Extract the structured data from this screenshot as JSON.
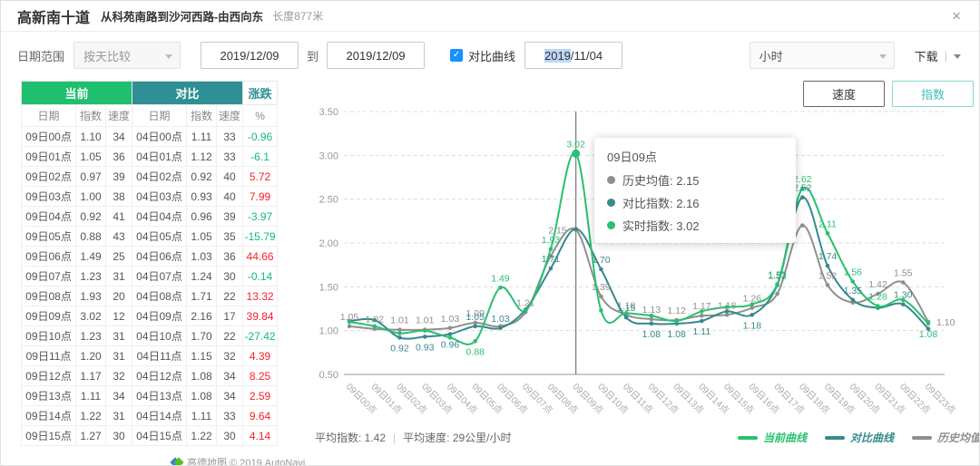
{
  "header": {
    "title": "高新南十道",
    "subtitle": "从科苑南路到沙河西路-由西向东",
    "length": "长度877米",
    "close_icon": "×"
  },
  "toolbar": {
    "date_range_label": "日期范围",
    "compare_mode": "按天比较",
    "start_date": "2019/12/09",
    "to_label": "到",
    "end_date": "2019/12/09",
    "checkmark": "✓",
    "compare_checkbox_label": "对比曲线",
    "compare_date_selected": "2019",
    "compare_date_rest": "/11/04",
    "granularity": "小时",
    "download_label": "下载"
  },
  "mode_buttons": {
    "speed": "速度",
    "index": "指数"
  },
  "table": {
    "group_headers": {
      "current": "当前",
      "compare": "对比",
      "change": "涨跌"
    },
    "columns": [
      "日期",
      "指数",
      "速度",
      "日期",
      "指数",
      "速度",
      "%"
    ],
    "rows": [
      [
        "09日00点",
        "1.10",
        "34",
        "04日00点",
        "1.11",
        "33",
        "-0.96"
      ],
      [
        "09日01点",
        "1.05",
        "36",
        "04日01点",
        "1.12",
        "33",
        "-6.1"
      ],
      [
        "09日02点",
        "0.97",
        "39",
        "04日02点",
        "0.92",
        "40",
        "5.72"
      ],
      [
        "09日03点",
        "1.00",
        "38",
        "04日03点",
        "0.93",
        "40",
        "7.99"
      ],
      [
        "09日04点",
        "0.92",
        "41",
        "04日04点",
        "0.96",
        "39",
        "-3.97"
      ],
      [
        "09日05点",
        "0.88",
        "43",
        "04日05点",
        "1.05",
        "35",
        "-15.79"
      ],
      [
        "09日06点",
        "1.49",
        "25",
        "04日06点",
        "1.03",
        "36",
        "44.66"
      ],
      [
        "09日07点",
        "1.23",
        "31",
        "04日07点",
        "1.24",
        "30",
        "-0.14"
      ],
      [
        "09日08点",
        "1.93",
        "20",
        "04日08点",
        "1.71",
        "22",
        "13.32"
      ],
      [
        "09日09点",
        "3.02",
        "12",
        "04日09点",
        "2.16",
        "17",
        "39.84"
      ],
      [
        "09日10点",
        "1.23",
        "31",
        "04日10点",
        "1.70",
        "22",
        "-27.42"
      ],
      [
        "09日11点",
        "1.20",
        "31",
        "04日11点",
        "1.15",
        "32",
        "4.39"
      ],
      [
        "09日12点",
        "1.17",
        "32",
        "04日12点",
        "1.08",
        "34",
        "8.25"
      ],
      [
        "09日13点",
        "1.11",
        "34",
        "04日13点",
        "1.08",
        "34",
        "2.59"
      ],
      [
        "09日14点",
        "1.22",
        "31",
        "04日14点",
        "1.11",
        "33",
        "9.64"
      ],
      [
        "09日15点",
        "1.27",
        "30",
        "04日15点",
        "1.22",
        "30",
        "4.14"
      ]
    ],
    "colors": {
      "positive_pct": "#f5222d",
      "negative_pct": "#10b981",
      "current_header_bg": "#1fbf6e",
      "compare_header_bg": "#2e9094"
    }
  },
  "chart_data": {
    "type": "line",
    "title": "",
    "xlabel": "",
    "ylabel": "",
    "ylim": [
      0.5,
      3.5
    ],
    "ystep": 0.5,
    "grid": "dashed",
    "hover_index": 9,
    "categories": [
      "09日00点",
      "09日01点",
      "09日02点",
      "09日03点",
      "09日04点",
      "09日05点",
      "09日06点",
      "09日07点",
      "09日08点",
      "09日09点",
      "09日10点",
      "09日11点",
      "09日12点",
      "09日13点",
      "09日14点",
      "09日15点",
      "09日16点",
      "09日17点",
      "09日18点",
      "09日19点",
      "09日20点",
      "09日21点",
      "09日22点",
      "09日23点"
    ],
    "series": [
      {
        "name": "当前曲线",
        "color": "#29c06f",
        "values": [
          1.1,
          1.05,
          0.97,
          1.0,
          0.92,
          0.88,
          1.49,
          1.23,
          1.93,
          3.02,
          1.23,
          1.2,
          1.17,
          1.11,
          1.22,
          1.27,
          1.3,
          1.53,
          2.62,
          2.11,
          1.56,
          1.28,
          1.35,
          1.08
        ]
      },
      {
        "name": "对比曲线",
        "color": "#37898c",
        "values": [
          1.11,
          1.12,
          0.92,
          0.93,
          0.96,
          1.05,
          1.03,
          1.24,
          1.71,
          2.16,
          1.7,
          1.15,
          1.08,
          1.08,
          1.11,
          1.22,
          1.18,
          1.52,
          2.52,
          1.74,
          1.35,
          1.26,
          1.3,
          1.02
        ]
      },
      {
        "name": "历史均值",
        "color": "#8f8f8f",
        "values": [
          1.05,
          1.02,
          1.01,
          1.01,
          1.03,
          1.09,
          1.05,
          1.21,
          1.85,
          2.15,
          1.39,
          1.18,
          1.13,
          1.12,
          1.17,
          1.18,
          1.26,
          1.42,
          2.2,
          1.52,
          1.32,
          1.42,
          1.55,
          1.1
        ]
      }
    ],
    "point_labels": [
      {
        "s": 2,
        "i": 0,
        "v": "1.05"
      },
      {
        "s": 2,
        "i": 1,
        "v": "1.02"
      },
      {
        "s": 2,
        "i": 2,
        "v": "1.01"
      },
      {
        "s": 2,
        "i": 3,
        "v": "1.01"
      },
      {
        "s": 2,
        "i": 4,
        "v": "1.03"
      },
      {
        "s": 2,
        "i": 5,
        "v": "1.09"
      },
      {
        "s": 2,
        "i": 7,
        "v": "1.21"
      },
      {
        "s": 2,
        "i": 9,
        "v": "2.15",
        "pos": "left"
      },
      {
        "s": 2,
        "i": 10,
        "v": "1.39"
      },
      {
        "s": 2,
        "i": 11,
        "v": "1.18"
      },
      {
        "s": 2,
        "i": 12,
        "v": "1.13"
      },
      {
        "s": 2,
        "i": 13,
        "v": "1.12"
      },
      {
        "s": 2,
        "i": 14,
        "v": "1.17"
      },
      {
        "s": 2,
        "i": 15,
        "v": "1.18"
      },
      {
        "s": 2,
        "i": 16,
        "v": "1.26"
      },
      {
        "s": 2,
        "i": 19,
        "v": "1.52"
      },
      {
        "s": 2,
        "i": 21,
        "v": "1.42"
      },
      {
        "s": 2,
        "i": 22,
        "v": "1.55"
      },
      {
        "s": 2,
        "i": 23,
        "v": "1.10",
        "pos": "right"
      },
      {
        "s": 1,
        "i": 2,
        "v": "0.92",
        "pos": "below"
      },
      {
        "s": 1,
        "i": 3,
        "v": "0.93",
        "pos": "below"
      },
      {
        "s": 1,
        "i": 4,
        "v": "0.96",
        "pos": "below"
      },
      {
        "s": 1,
        "i": 5,
        "v": "1.05"
      },
      {
        "s": 1,
        "i": 6,
        "v": "1.03"
      },
      {
        "s": 1,
        "i": 8,
        "v": "1.71"
      },
      {
        "s": 1,
        "i": 10,
        "v": "1.70"
      },
      {
        "s": 1,
        "i": 11,
        "v": "1.15"
      },
      {
        "s": 1,
        "i": 12,
        "v": "1.08",
        "pos": "below"
      },
      {
        "s": 1,
        "i": 13,
        "v": "1.08",
        "pos": "below"
      },
      {
        "s": 1,
        "i": 14,
        "v": "1.11",
        "pos": "below"
      },
      {
        "s": 1,
        "i": 16,
        "v": "1.18",
        "pos": "below"
      },
      {
        "s": 1,
        "i": 17,
        "v": "1.52"
      },
      {
        "s": 1,
        "i": 18,
        "v": "2.52"
      },
      {
        "s": 1,
        "i": 19,
        "v": "1.74"
      },
      {
        "s": 1,
        "i": 20,
        "v": "1.35"
      },
      {
        "s": 1,
        "i": 22,
        "v": "1.30"
      },
      {
        "s": 0,
        "i": 5,
        "v": "0.88",
        "pos": "below"
      },
      {
        "s": 0,
        "i": 6,
        "v": "1.49"
      },
      {
        "s": 0,
        "i": 8,
        "v": "1.93"
      },
      {
        "s": 0,
        "i": 9,
        "v": "3.02"
      },
      {
        "s": 0,
        "i": 17,
        "v": "1.53"
      },
      {
        "s": 0,
        "i": 18,
        "v": "2.62"
      },
      {
        "s": 0,
        "i": 19,
        "v": "2.11"
      },
      {
        "s": 0,
        "i": 20,
        "v": "1.56"
      },
      {
        "s": 0,
        "i": 21,
        "v": "1.28"
      },
      {
        "s": 0,
        "i": 23,
        "v": "1.08",
        "pos": "below"
      }
    ],
    "legend_position": "bottom-right"
  },
  "tooltip": {
    "title": "09日09点",
    "rows": [
      {
        "label": "历史均值",
        "value": "2.15",
        "color": "#8f8f8f"
      },
      {
        "label": "对比指数",
        "value": "2.16",
        "color": "#37898c"
      },
      {
        "label": "实时指数",
        "value": "3.02",
        "color": "#29c06f"
      }
    ]
  },
  "stats": {
    "avg_index": "平均指数: 1.42",
    "avg_speed": "平均速度: 29公里/小时"
  },
  "legend": [
    {
      "label": "当前曲线",
      "color": "#29c06f"
    },
    {
      "label": "对比曲线",
      "color": "#37898c"
    },
    {
      "label": "历史均值",
      "color": "#8f8f8f"
    }
  ],
  "footer": {
    "watermark": "高德地图 © 2019 AutoNavi"
  }
}
